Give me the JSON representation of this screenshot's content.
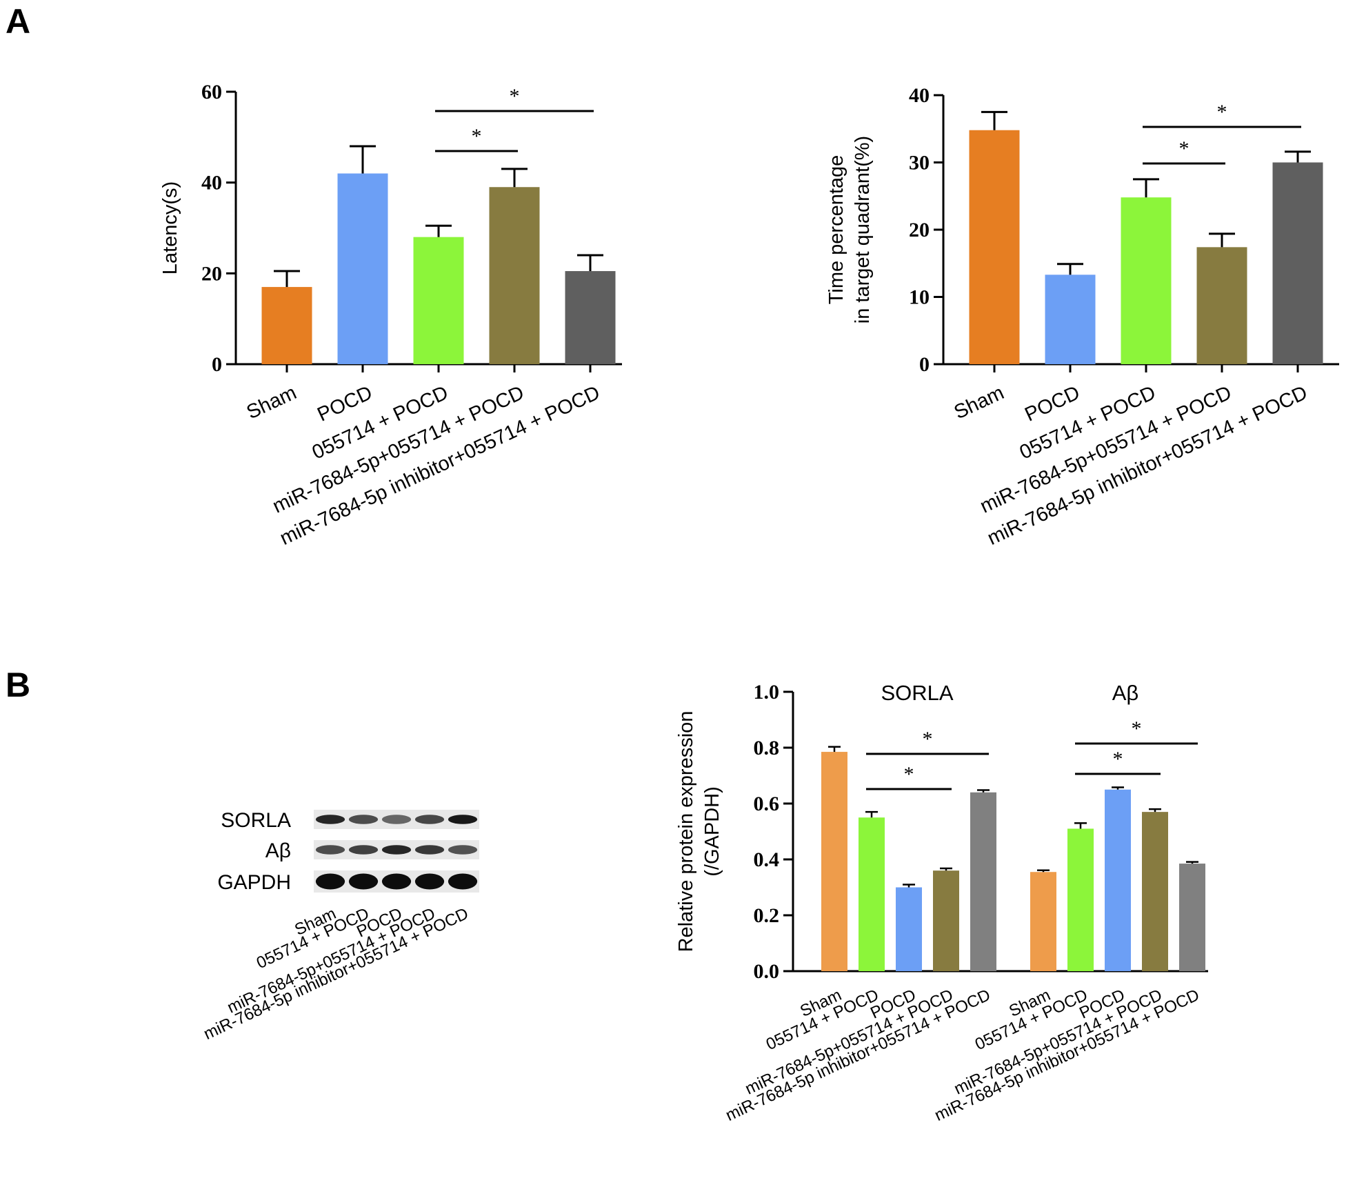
{
  "panel_labels": [
    "A",
    "B"
  ],
  "colors": {
    "sham": "#E67E22",
    "pocd": "#6C9FF5",
    "055714_pocd": "#8CF53A",
    "mir_055714_pocd": "#877B40",
    "inhibitor_055714_pocd": "#5F5F5F",
    "sham_b": "#EE9C4B",
    "inhibitor_b": "#808080"
  },
  "chart_data": [
    {
      "type": "bar",
      "id": "latency",
      "ylabel": "Latency(s)",
      "categories": [
        "Sham",
        "POCD",
        "055714   + POCD",
        "miR-7684-5p+055714   + POCD",
        "miR-7684-5p  inhibitor+055714   + POCD"
      ],
      "values": [
        17,
        42,
        28,
        39,
        20.5
      ],
      "errors": [
        3.5,
        6,
        2.5,
        4,
        3.5
      ],
      "ylim": [
        0,
        60
      ],
      "yticks": [
        0,
        20,
        40,
        60
      ],
      "significance": [
        {
          "from": 2,
          "to": 3,
          "label": "*"
        },
        {
          "from": 2,
          "to": 4,
          "label": "*"
        }
      ]
    },
    {
      "type": "bar",
      "id": "time_percentage",
      "ylabel": [
        "Time percentage",
        "in target quadrant(%)"
      ],
      "categories": [
        "Sham",
        "POCD",
        "055714   + POCD",
        "miR-7684-5p+055714   + POCD",
        "miR-7684-5p  inhibitor+055714   + POCD"
      ],
      "values": [
        34.8,
        13.3,
        24.8,
        17.4,
        30
      ],
      "errors": [
        2.7,
        1.6,
        2.7,
        2,
        1.6
      ],
      "ylim": [
        0,
        40
      ],
      "yticks": [
        0,
        10,
        20,
        30,
        40
      ],
      "significance": [
        {
          "from": 2,
          "to": 3,
          "label": "*"
        },
        {
          "from": 2,
          "to": 4,
          "label": "*"
        }
      ]
    },
    {
      "type": "bar",
      "id": "protein_expression",
      "ylabel": [
        "Relative protein expression",
        "(/GAPDH)"
      ],
      "groups": [
        "SORLA",
        "Aβ"
      ],
      "categories": [
        "Sham",
        "055714 + POCD",
        "POCD",
        "miR-7684-5p+055714 + POCD",
        "miR-7684-5p inhibitor+055714 + POCD"
      ],
      "series": [
        {
          "group": "SORLA",
          "values": [
            0.785,
            0.55,
            0.3,
            0.36,
            0.64
          ],
          "errors": [
            0.018,
            0.02,
            0.01,
            0.008,
            0.008
          ]
        },
        {
          "group": "Aβ",
          "values": [
            0.355,
            0.51,
            0.65,
            0.57,
            0.385
          ],
          "errors": [
            0.006,
            0.02,
            0.008,
            0.01,
            0.006
          ]
        }
      ],
      "ylim": [
        0,
        1.0
      ],
      "yticks": [
        "0.0",
        "0.2",
        "0.4",
        "0.6",
        "0.8",
        "1.0"
      ],
      "significance": [
        {
          "group": 0,
          "from": 1,
          "to": 3,
          "label": "*"
        },
        {
          "group": 0,
          "from": 1,
          "to": 4,
          "label": "*"
        },
        {
          "group": 1,
          "from": 1,
          "to": 3,
          "label": "*"
        },
        {
          "group": 1,
          "from": 1,
          "to": 4,
          "label": "*"
        }
      ]
    }
  ],
  "blot": {
    "proteins": [
      "SORLA",
      "Aβ",
      "GAPDH"
    ],
    "lanes": [
      "Sham",
      "055714 + POCD",
      "POCD",
      "miR-7684-5p+055714 + POCD",
      "miR-7684-5p inhibitor+055714 + POCD"
    ],
    "band_intensity": [
      [
        0.85,
        0.7,
        0.6,
        0.72,
        0.9
      ],
      [
        0.7,
        0.75,
        0.85,
        0.78,
        0.68
      ],
      [
        0.95,
        0.95,
        0.95,
        0.95,
        0.95
      ]
    ]
  }
}
